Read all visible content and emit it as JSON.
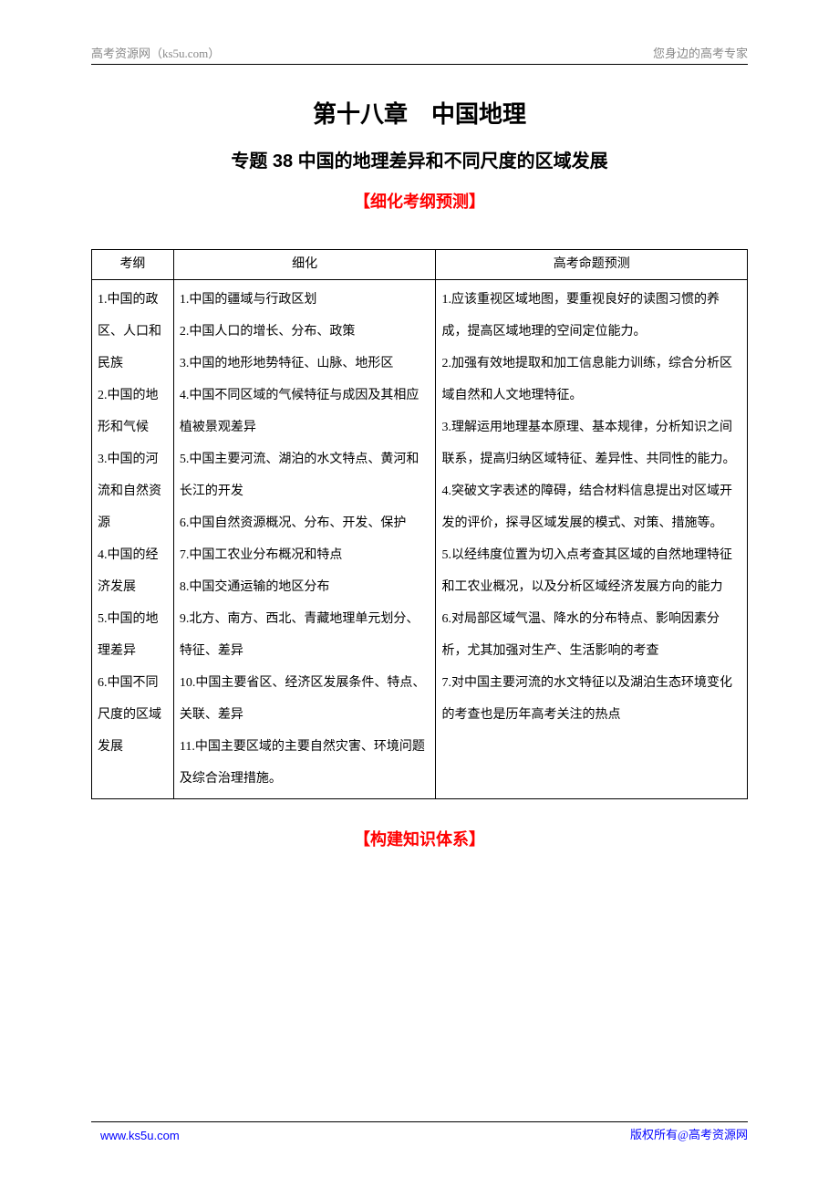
{
  "header": {
    "left": "高考资源网（ks5u.com）",
    "right": "您身边的高考专家"
  },
  "chapter_title": "第十八章　中国地理",
  "topic_title": "专题 38  中国的地理差异和不同尺度的区域发展",
  "section1": "【细化考纲预测】",
  "section2": "【构建知识体系】",
  "table": {
    "headers": {
      "col1": "考纲",
      "col2": "细化",
      "col3": "高考命题预测"
    },
    "col1_text": "1.中国的政区、人口和民族\n2.中国的地形和气候\n3.中国的河流和自然资源\n4.中国的经济发展\n5.中国的地理差异\n6.中国不同尺度的区域发展",
    "col2_text": "1.中国的疆域与行政区划\n2.中国人口的增长、分布、政策\n3.中国的地形地势特征、山脉、地形区\n4.中国不同区域的气候特征与成因及其相应植被景观差异\n5.中国主要河流、湖泊的水文特点、黄河和长江的开发\n6.中国自然资源概况、分布、开发、保护\n7.中国工农业分布概况和特点\n8.中国交通运输的地区分布\n9.北方、南方、西北、青藏地理单元划分、特征、差异\n10.中国主要省区、经济区发展条件、特点、关联、差异\n11.中国主要区域的主要自然灾害、环境问题及综合治理措施。",
    "col3_text": "1.应该重视区域地图，要重视良好的读图习惯的养成，提高区域地理的空间定位能力。\n2.加强有效地提取和加工信息能力训练，综合分析区域自然和人文地理特征。\n3.理解运用地理基本原理、基本规律，分析知识之间联系，提高归纳区域特征、差异性、共同性的能力。\n4.突破文字表述的障碍，结合材料信息提出对区域开发的评价，探寻区域发展的模式、对策、措施等。\n5.以经纬度位置为切入点考查其区域的自然地理特征和工农业概况，以及分析区域经济发展方向的能力\n6.对局部区域气温、降水的分布特点、影响因素分析，尤其加强对生产、生活影响的考查\n7.对中国主要河流的水文特征以及湖泊生态环境变化的考查也是历年高考关注的热点"
  },
  "footer": {
    "left": "www.ks5u.com",
    "right": "版权所有@高考资源网"
  },
  "colors": {
    "red": "#ff0000",
    "blue": "#0000ff",
    "gray": "#888888",
    "black": "#000000"
  }
}
